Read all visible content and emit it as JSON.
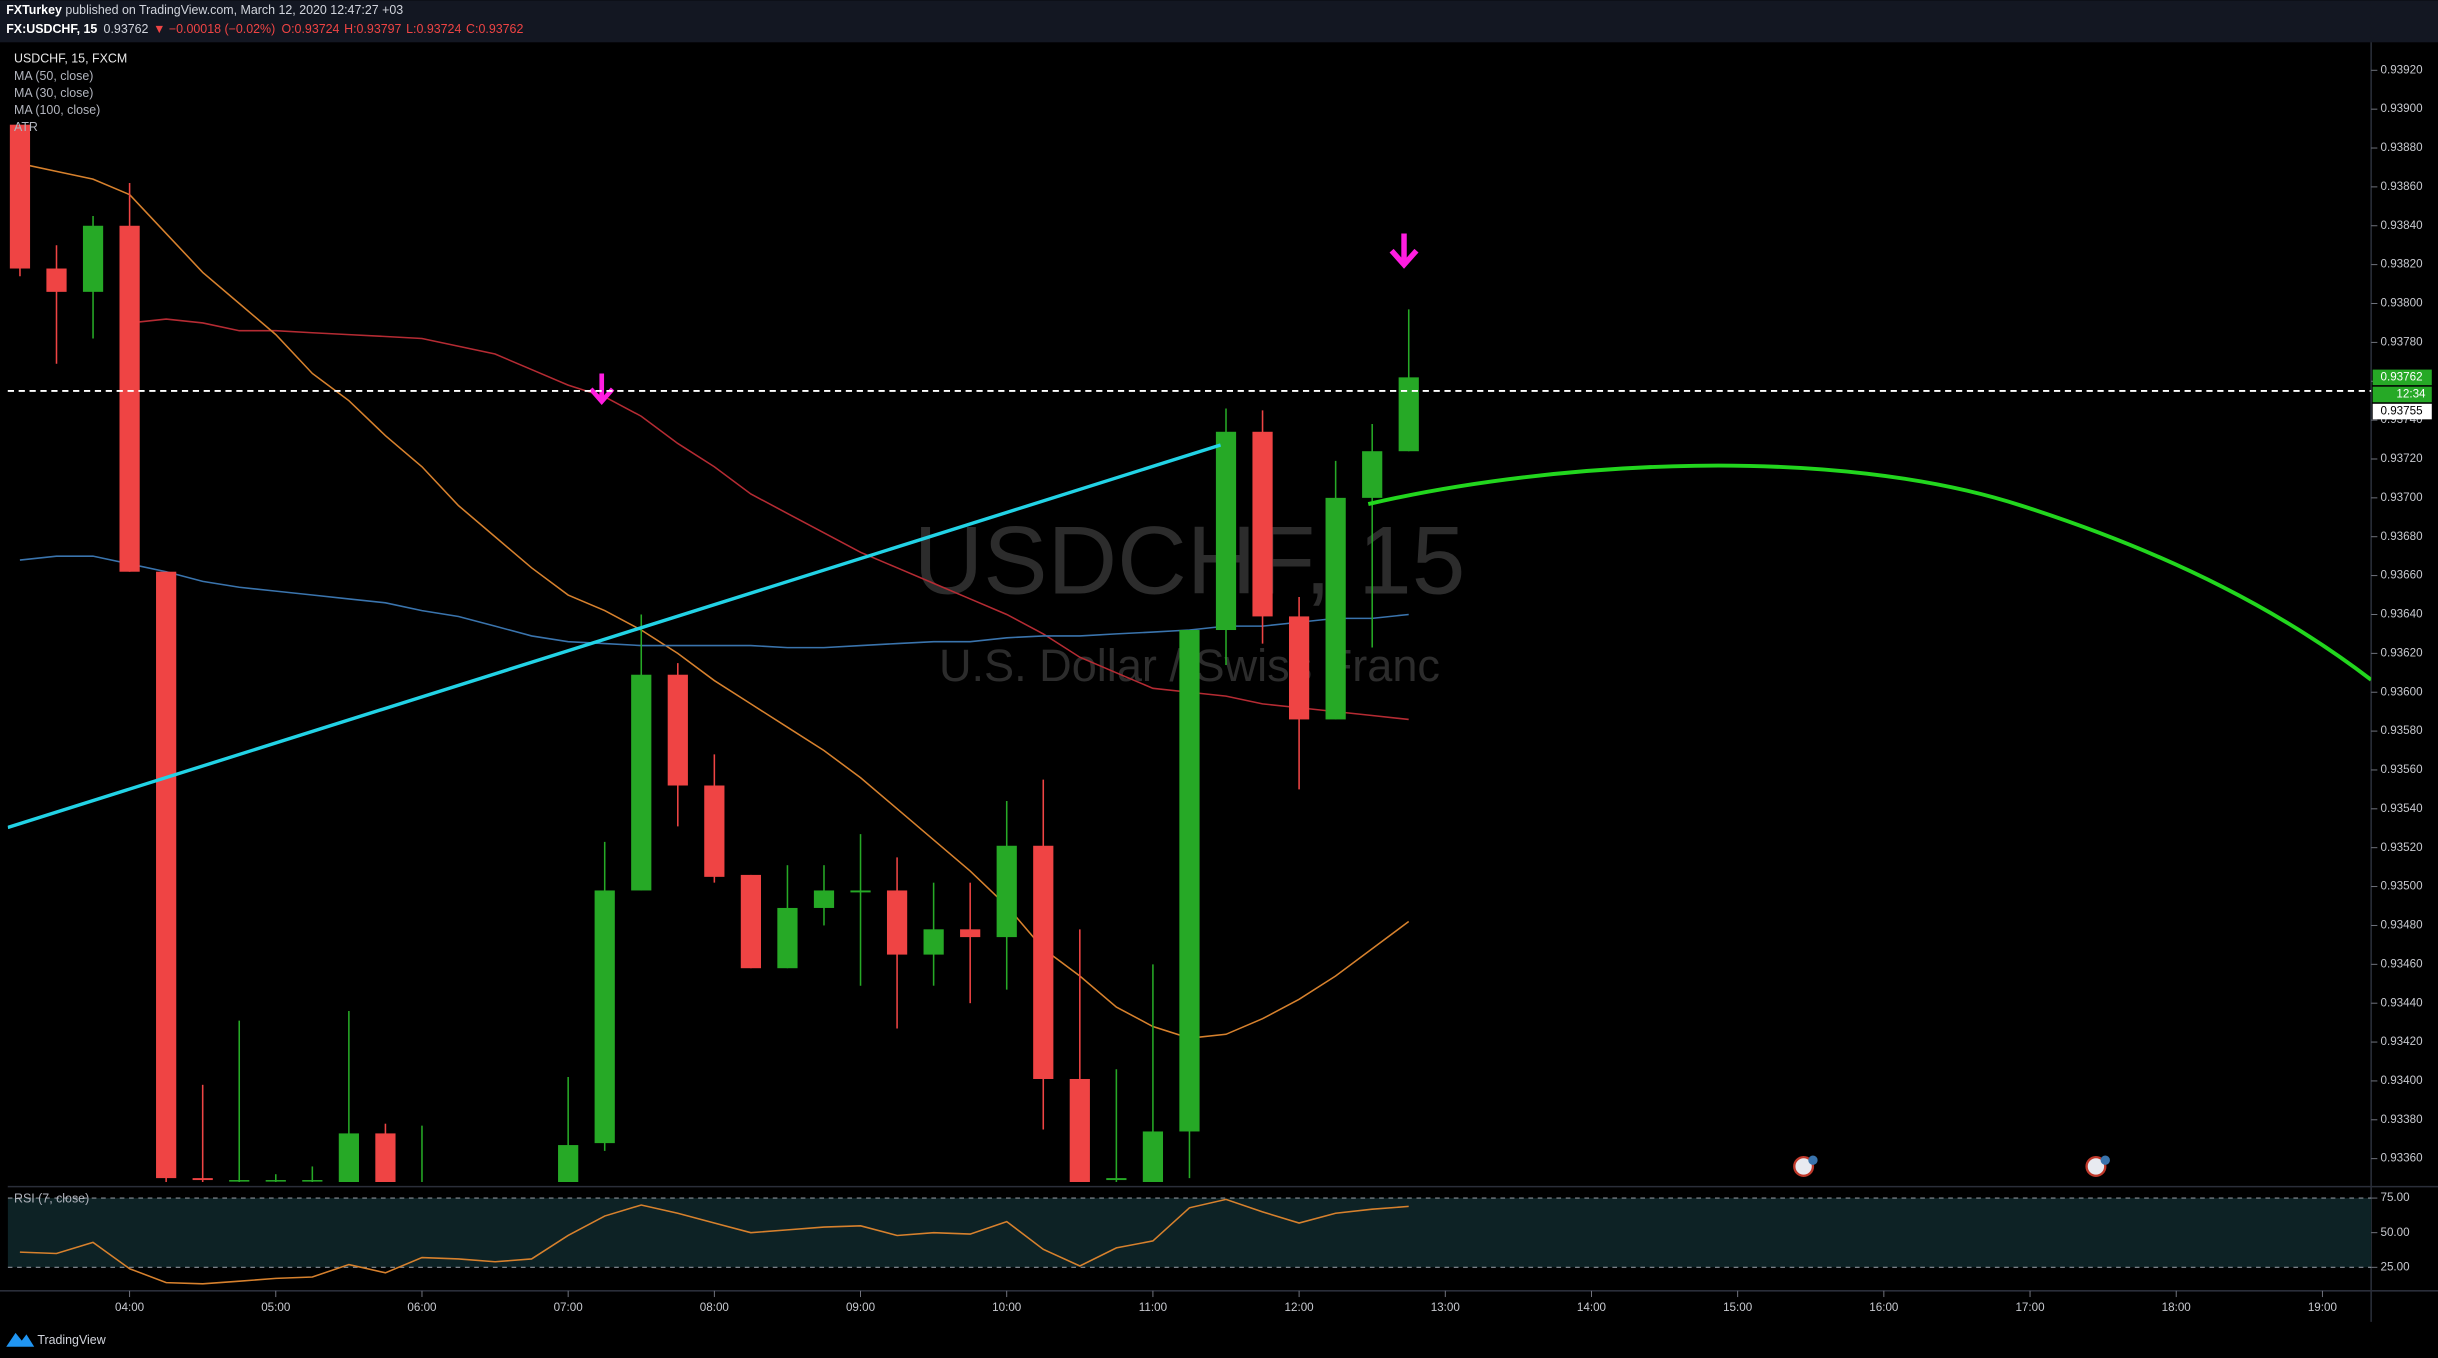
{
  "header": {
    "author": "FXTurkey",
    "published": " published on TradingView.com, March 12, 2020 12:47:27 +03",
    "symbol": "FX:USDCHF, 15",
    "last": "0.93762",
    "change": "▼ −0.00018 (−0.02%)",
    "open": "O:0.93724",
    "high": "H:0.93797",
    "low": "L:0.93724",
    "close": "C:0.93762"
  },
  "watermark": {
    "title": "USDCHF, 15",
    "subtitle": "U.S. Dollar / Swiss Franc"
  },
  "footer": {
    "brand": "TradingView"
  },
  "chart_data": [
    {
      "type": "candlestick",
      "title": "USDCHF, 15, FXCM",
      "legend_extra": "ATR",
      "up_color": "#26a926",
      "down_color": "#ef4444",
      "x": [
        "03:15",
        "03:30",
        "03:45",
        "04:00",
        "04:15",
        "04:30",
        "04:45",
        "05:00",
        "05:15",
        "05:30",
        "05:45",
        "06:00",
        "06:15",
        "06:30",
        "06:45",
        "07:00",
        "07:15",
        "07:30",
        "07:45",
        "08:00",
        "08:15",
        "08:30",
        "08:45",
        "09:00",
        "09:15",
        "09:30",
        "09:45",
        "10:00",
        "10:15",
        "10:30",
        "10:45",
        "11:00",
        "11:15",
        "11:30",
        "11:45",
        "12:00",
        "12:15",
        "12:30",
        "12:45"
      ],
      "open": [
        0.93892,
        0.93818,
        0.93806,
        0.9384,
        0.93662,
        0.9335,
        0.93349,
        0.93349,
        0.93349,
        0.93345,
        0.93373,
        0.93345,
        0.93345,
        0.9334,
        0.93342,
        0.9334,
        0.93368,
        0.93498,
        0.93609,
        0.93552,
        0.93506,
        0.93458,
        0.93489,
        0.93497,
        0.93498,
        0.93465,
        0.93478,
        0.93474,
        0.93521,
        0.93401,
        0.93349,
        0.93348,
        0.93374,
        0.93632,
        0.93734,
        0.93639,
        0.93586,
        0.937,
        0.93724
      ],
      "high": [
        0.93892,
        0.9383,
        0.93845,
        0.93862,
        0.93662,
        0.93398,
        0.93431,
        0.93352,
        0.93356,
        0.93436,
        0.93378,
        0.93377,
        0.93347,
        0.93346,
        0.93346,
        0.93402,
        0.93523,
        0.9364,
        0.93615,
        0.93568,
        0.93506,
        0.93511,
        0.93511,
        0.93527,
        0.93515,
        0.93502,
        0.93502,
        0.93544,
        0.93555,
        0.93478,
        0.93406,
        0.9346,
        0.93632,
        0.93746,
        0.93745,
        0.93649,
        0.93719,
        0.93738,
        0.93797
      ],
      "low": [
        0.93814,
        0.93769,
        0.93782,
        0.93662,
        0.9334,
        0.93345,
        0.93346,
        0.93346,
        0.93346,
        0.93335,
        0.93335,
        0.93335,
        0.93335,
        0.93335,
        0.93335,
        0.93335,
        0.93364,
        0.93498,
        0.93531,
        0.93502,
        0.93458,
        0.93458,
        0.9348,
        0.93449,
        0.93427,
        0.93449,
        0.9344,
        0.93447,
        0.93375,
        0.9334,
        0.9334,
        0.9334,
        0.9335,
        0.93614,
        0.93625,
        0.9355,
        0.93586,
        0.93623,
        0.93724
      ],
      "close": [
        0.93818,
        0.93806,
        0.9384,
        0.93662,
        0.9335,
        0.93349,
        0.93349,
        0.93349,
        0.93349,
        0.93373,
        0.93345,
        0.93345,
        0.9334,
        0.93342,
        0.9334,
        0.93367,
        0.93498,
        0.93609,
        0.93552,
        0.93505,
        0.93458,
        0.93489,
        0.93498,
        0.93498,
        0.93465,
        0.93478,
        0.93474,
        0.93521,
        0.93401,
        0.93348,
        0.9335,
        0.93374,
        0.93632,
        0.93734,
        0.93639,
        0.93586,
        0.937,
        0.93724,
        0.93762
      ],
      "series": [
        {
          "name": "MA (50, close)",
          "color": "#b52b33",
          "values": [
            null,
            null,
            null,
            0.9379,
            0.93792,
            0.9379,
            0.93786,
            0.93786,
            0.93785,
            0.93784,
            0.93783,
            0.93782,
            0.93778,
            0.93774,
            0.93766,
            0.93758,
            0.93752,
            0.93742,
            0.93728,
            0.93716,
            0.93702,
            0.93692,
            0.93682,
            0.93672,
            0.93664,
            0.93656,
            0.93648,
            0.9364,
            0.9363,
            0.93618,
            0.9361,
            0.93602,
            0.936,
            0.93598,
            0.93594,
            0.93592,
            0.9359,
            0.93588,
            0.93586
          ]
        },
        {
          "name": "MA (30, close)",
          "color": "#d7812d",
          "values": [
            0.93872,
            0.93868,
            0.93864,
            0.93856,
            0.93836,
            0.93816,
            0.938,
            0.93784,
            0.93764,
            0.9375,
            0.93732,
            0.93716,
            0.93696,
            0.9368,
            0.93664,
            0.9365,
            0.93642,
            0.93632,
            0.9362,
            0.93606,
            0.93594,
            0.93582,
            0.9357,
            0.93556,
            0.9354,
            0.93524,
            0.93508,
            0.9349,
            0.93468,
            0.93454,
            0.93438,
            0.93428,
            0.93422,
            0.93424,
            0.93432,
            0.93442,
            0.93454,
            0.93468,
            0.93482
          ]
        },
        {
          "name": "MA (100, close)",
          "color": "#3a74ad",
          "values": [
            0.93668,
            0.9367,
            0.9367,
            0.93666,
            0.93662,
            0.93657,
            0.93654,
            0.93652,
            0.9365,
            0.93648,
            0.93646,
            0.93642,
            0.93639,
            0.93634,
            0.93629,
            0.93626,
            0.93625,
            0.93624,
            0.93624,
            0.93624,
            0.93624,
            0.93623,
            0.93623,
            0.93624,
            0.93625,
            0.93626,
            0.93626,
            0.93628,
            0.93629,
            0.93629,
            0.9363,
            0.93631,
            0.93632,
            0.93634,
            0.93634,
            0.93636,
            0.93638,
            0.93638,
            0.9364
          ]
        }
      ],
      "last_price": {
        "value": 0.93762,
        "label": "0.93762"
      },
      "countdown": "12:34",
      "price_line": {
        "value": 0.93755,
        "label": "0.93755"
      },
      "xlim": [
        "03:10",
        "19:20"
      ],
      "xticks": [
        "04:00",
        "05:00",
        "06:00",
        "07:00",
        "08:00",
        "09:00",
        "10:00",
        "11:00",
        "12:00",
        "13:00",
        "14:00",
        "15:00",
        "16:00",
        "17:00",
        "18:00",
        "19:00"
      ],
      "ylim": [
        0.93348,
        0.93932
      ],
      "yticks": [
        {
          "value": 0.9336,
          "label": "0.93360"
        },
        {
          "value": 0.9338,
          "label": "0.93380"
        },
        {
          "value": 0.934,
          "label": "0.93400"
        },
        {
          "value": 0.9342,
          "label": "0.93420"
        },
        {
          "value": 0.9344,
          "label": "0.93440"
        },
        {
          "value": 0.9346,
          "label": "0.93460"
        },
        {
          "value": 0.9348,
          "label": "0.93480"
        },
        {
          "value": 0.935,
          "label": "0.93500"
        },
        {
          "value": 0.9352,
          "label": "0.93520"
        },
        {
          "value": 0.9354,
          "label": "0.93540"
        },
        {
          "value": 0.9356,
          "label": "0.93560"
        },
        {
          "value": 0.9358,
          "label": "0.93580"
        },
        {
          "value": 0.936,
          "label": "0.93600"
        },
        {
          "value": 0.9362,
          "label": "0.93620"
        },
        {
          "value": 0.9364,
          "label": "0.93640"
        },
        {
          "value": 0.9366,
          "label": "0.93660"
        },
        {
          "value": 0.9368,
          "label": "0.93680"
        },
        {
          "value": 0.937,
          "label": "0.93700"
        },
        {
          "value": 0.9372,
          "label": "0.93720"
        },
        {
          "value": 0.9374,
          "label": "0.93740"
        },
        {
          "value": 0.9376,
          "label": "0.93760"
        },
        {
          "value": 0.9378,
          "label": "0.93780"
        },
        {
          "value": 0.938,
          "label": "0.93800"
        },
        {
          "value": 0.9382,
          "label": "0.93820"
        },
        {
          "value": 0.9384,
          "label": "0.93840"
        },
        {
          "value": 0.9386,
          "label": "0.93860"
        },
        {
          "value": 0.9388,
          "label": "0.93880"
        },
        {
          "value": 0.939,
          "label": "0.93900"
        },
        {
          "value": 0.9392,
          "label": "0.93920"
        }
      ],
      "grid": false
    },
    {
      "type": "line",
      "title": "RSI (7, close)",
      "x": [
        "03:15",
        "03:30",
        "03:45",
        "04:00",
        "04:15",
        "04:30",
        "04:45",
        "05:00",
        "05:15",
        "05:30",
        "05:45",
        "06:00",
        "06:15",
        "06:30",
        "06:45",
        "07:00",
        "07:15",
        "07:30",
        "07:45",
        "08:00",
        "08:15",
        "08:30",
        "08:45",
        "09:00",
        "09:15",
        "09:30",
        "09:45",
        "10:00",
        "10:15",
        "10:30",
        "10:45",
        "11:00",
        "11:15",
        "11:30",
        "11:45",
        "12:00",
        "12:15",
        "12:30",
        "12:45"
      ],
      "series": [
        {
          "name": "RSI",
          "color": "#d7812d",
          "values": [
            36,
            35,
            43,
            24,
            14,
            13,
            15,
            17,
            18,
            27,
            21,
            32,
            31,
            29,
            31,
            48,
            62,
            70,
            64,
            57,
            50,
            52,
            54,
            55,
            48,
            50,
            49,
            58,
            38,
            26,
            39,
            44,
            68,
            74,
            65,
            57,
            64,
            67,
            69
          ]
        }
      ],
      "ylim": [
        8,
        81
      ],
      "yticks": [
        {
          "value": 75,
          "label": "75.00"
        },
        {
          "value": 50,
          "label": "50.00"
        },
        {
          "value": 25,
          "label": "25.00"
        }
      ]
    }
  ]
}
